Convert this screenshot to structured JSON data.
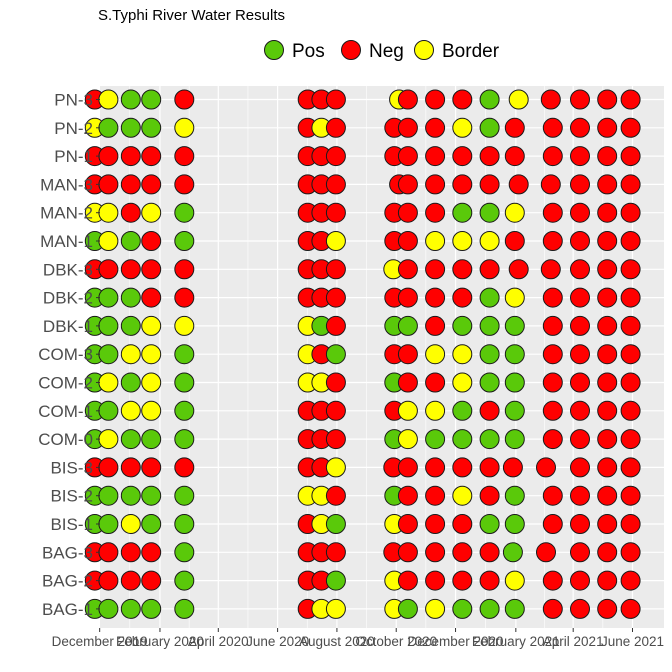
{
  "chart_data": {
    "type": "scatter",
    "title": "S.Typhi River Water Results",
    "legend": {
      "position": "top",
      "entries": [
        {
          "label": "Pos",
          "color": "#5ac90a"
        },
        {
          "label": "Neg",
          "color": "#ff0000"
        },
        {
          "label": "Border",
          "color": "#ffff00"
        }
      ]
    },
    "colors": {
      "P": "#5ac90a",
      "N": "#ff0000",
      "B": "#ffff00",
      "panel": "#ebebeb",
      "grid": "#ffffff",
      "outline": "#1a1a1a"
    },
    "x_ticks": [
      "December 2019",
      "February 2020",
      "April 2020",
      "June 2020",
      "August 2020",
      "October 2020",
      "December 2020",
      "February 2021",
      "April 2021",
      "June 2021"
    ],
    "y_categories": [
      "PN-3",
      "PN-2",
      "PN-1",
      "MAN-3",
      "MAN-2",
      "MAN-1",
      "DBK-3",
      "DBK-2",
      "DBK-1",
      "COM-3",
      "COM-2",
      "COM-1",
      "COM-0",
      "BIS-3",
      "BIS-2",
      "BIS-1",
      "BAG-3",
      "BAG-2",
      "BAG-1"
    ],
    "sampling_dates": [
      "2019-11-26",
      "2019-12-10",
      "2020-01-02",
      "2020-01-23",
      "2020-02-26",
      "2020-07-02",
      "2020-07-16",
      "2020-07-31",
      "2020-09-29",
      "2020-10-13",
      "2020-11-10",
      "2020-12-08",
      "2021-01-05",
      "2021-01-31",
      "2021-03-11",
      "2021-04-08",
      "2021-05-06",
      "2021-05-30"
    ],
    "point_dates": {
      "PN-3": [
        "2019-11-26",
        "2019-12-10",
        "2020-01-02",
        "2020-01-23",
        "2020-02-26",
        "2020-07-02",
        "2020-07-16",
        "2020-07-31",
        "2020-10-04",
        "2020-10-13",
        "2020-11-10",
        "2020-12-08",
        "2021-01-05",
        "2021-02-04",
        "2021-03-09",
        "2021-04-08",
        "2021-05-06",
        "2021-05-30"
      ],
      "MAN-3": [
        "2019-11-26",
        "2019-12-10",
        "2020-01-02",
        "2020-01-23",
        "2020-02-26",
        "2020-07-02",
        "2020-07-16",
        "2020-07-31",
        "2020-10-04",
        "2020-10-13",
        "2020-11-10",
        "2020-12-08",
        "2021-01-05",
        "2021-02-04",
        "2021-03-09",
        "2021-04-08",
        "2021-05-06",
        "2021-05-30"
      ],
      "DBK-3": [
        "2019-11-26",
        "2019-12-10",
        "2020-01-02",
        "2020-01-23",
        "2020-02-26",
        "2020-07-02",
        "2020-07-16",
        "2020-07-31",
        "2020-09-28",
        "2020-10-13",
        "2020-11-10",
        "2020-12-08",
        "2021-01-05",
        "2021-02-04",
        "2021-03-09",
        "2021-04-08",
        "2021-05-06",
        "2021-05-30"
      ],
      "BAG-3": [
        "2019-11-26",
        "2019-12-10",
        "2020-01-02",
        "2020-01-23",
        "2020-02-26",
        "2020-07-02",
        "2020-07-16",
        "2020-07-31",
        "2020-09-28",
        "2020-10-13",
        "2020-11-10",
        "2020-12-08",
        "2021-01-05",
        "2021-01-29",
        "2021-03-04",
        "2021-04-08",
        "2021-05-06",
        "2021-05-30"
      ],
      "BIS-3": [
        "2019-11-26",
        "2019-12-10",
        "2020-01-02",
        "2020-01-23",
        "2020-02-26",
        "2020-07-02",
        "2020-07-16",
        "2020-07-31",
        "2020-09-28",
        "2020-10-13",
        "2020-11-10",
        "2020-12-08",
        "2021-01-05",
        "2021-01-29",
        "2021-03-04",
        "2021-04-08",
        "2021-05-06",
        "2021-05-30"
      ]
    },
    "results": {
      "PN-3": [
        "N",
        "B",
        "P",
        "P",
        "N",
        "N",
        "N",
        "N",
        "B",
        "N",
        "N",
        "N",
        "P",
        "B",
        "N",
        "N",
        "N",
        "N"
      ],
      "PN-2": [
        "B",
        "P",
        "P",
        "P",
        "B",
        "N",
        "B",
        "N",
        "N",
        "N",
        "N",
        "B",
        "P",
        "N",
        "N",
        "N",
        "N",
        "N"
      ],
      "PN-1": [
        "N",
        "N",
        "N",
        "N",
        "N",
        "N",
        "N",
        "N",
        "N",
        "N",
        "N",
        "N",
        "N",
        "N",
        "N",
        "N",
        "N",
        "N"
      ],
      "MAN-3": [
        "N",
        "N",
        "N",
        "N",
        "N",
        "N",
        "N",
        "N",
        "N",
        "N",
        "N",
        "N",
        "N",
        "N",
        "N",
        "N",
        "N",
        "N"
      ],
      "MAN-2": [
        "B",
        "B",
        "N",
        "B",
        "P",
        "N",
        "N",
        "N",
        "N",
        "N",
        "N",
        "P",
        "P",
        "B",
        "N",
        "N",
        "N",
        "N"
      ],
      "MAN-1": [
        "P",
        "B",
        "P",
        "N",
        "P",
        "N",
        "N",
        "B",
        "N",
        "N",
        "B",
        "B",
        "B",
        "N",
        "N",
        "N",
        "N",
        "N"
      ],
      "DBK-3": [
        "N",
        "N",
        "N",
        "N",
        "N",
        "N",
        "N",
        "N",
        "B",
        "N",
        "N",
        "N",
        "N",
        "N",
        "N",
        "N",
        "N",
        "N"
      ],
      "DBK-2": [
        "P",
        "P",
        "P",
        "N",
        "N",
        "N",
        "N",
        "N",
        "N",
        "N",
        "N",
        "N",
        "P",
        "B",
        "N",
        "N",
        "N",
        "N"
      ],
      "DBK-1": [
        "P",
        "P",
        "P",
        "B",
        "B",
        "B",
        "P",
        "N",
        "P",
        "P",
        "N",
        "P",
        "P",
        "P",
        "N",
        "N",
        "N",
        "N"
      ],
      "COM-3": [
        "P",
        "P",
        "B",
        "B",
        "P",
        "B",
        "N",
        "P",
        "N",
        "N",
        "B",
        "B",
        "P",
        "P",
        "N",
        "N",
        "N",
        "N"
      ],
      "COM-2": [
        "P",
        "B",
        "P",
        "B",
        "P",
        "B",
        "B",
        "N",
        "P",
        "N",
        "N",
        "B",
        "P",
        "P",
        "N",
        "N",
        "N",
        "N"
      ],
      "COM-1": [
        "P",
        "P",
        "B",
        "B",
        "P",
        "N",
        "N",
        "N",
        "N",
        "B",
        "B",
        "P",
        "N",
        "P",
        "N",
        "N",
        "N",
        "N"
      ],
      "COM-0": [
        "P",
        "B",
        "P",
        "P",
        "P",
        "N",
        "N",
        "N",
        "P",
        "B",
        "P",
        "P",
        "P",
        "P",
        "N",
        "N",
        "N",
        "N"
      ],
      "BIS-3": [
        "N",
        "N",
        "N",
        "N",
        "N",
        "N",
        "N",
        "B",
        "N",
        "N",
        "N",
        "N",
        "N",
        "N",
        "N",
        "N",
        "N",
        "N"
      ],
      "BIS-2": [
        "P",
        "P",
        "P",
        "P",
        "P",
        "B",
        "B",
        "N",
        "P",
        "N",
        "N",
        "B",
        "N",
        "P",
        "N",
        "N",
        "N",
        "N"
      ],
      "BIS-1": [
        "P",
        "P",
        "B",
        "P",
        "P",
        "N",
        "B",
        "P",
        "B",
        "N",
        "N",
        "N",
        "P",
        "P",
        "N",
        "N",
        "N",
        "N"
      ],
      "BAG-3": [
        "N",
        "N",
        "N",
        "N",
        "P",
        "N",
        "N",
        "N",
        "N",
        "N",
        "N",
        "N",
        "N",
        "P",
        "N",
        "N",
        "N",
        "N"
      ],
      "BAG-2": [
        "N",
        "N",
        "N",
        "N",
        "P",
        "N",
        "N",
        "P",
        "B",
        "N",
        "N",
        "N",
        "N",
        "B",
        "N",
        "N",
        "N",
        "N"
      ],
      "BAG-1": [
        "P",
        "P",
        "P",
        "P",
        "P",
        "N",
        "B",
        "B",
        "B",
        "P",
        "B",
        "P",
        "P",
        "P",
        "N",
        "N",
        "N",
        "N"
      ]
    }
  }
}
